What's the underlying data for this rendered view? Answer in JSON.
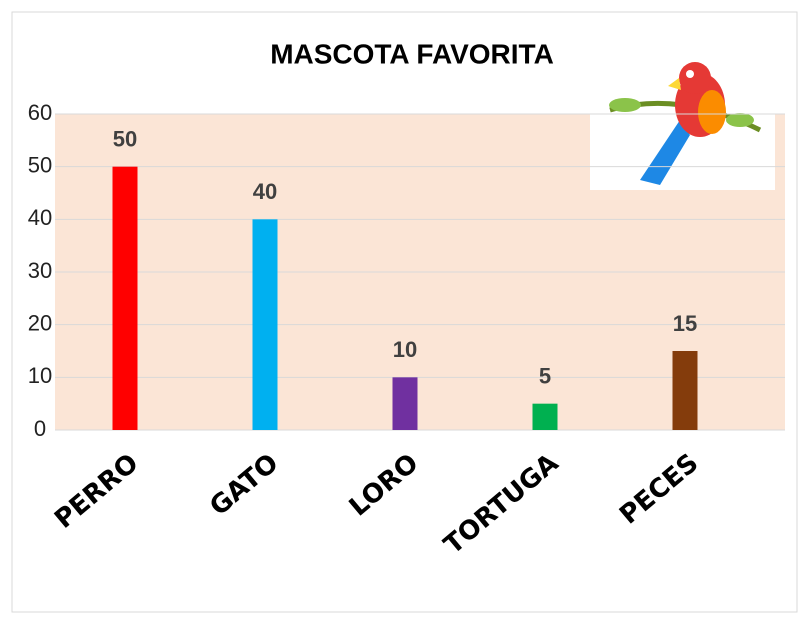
{
  "chart_data": {
    "type": "bar",
    "title": "MASCOTA FAVORITA",
    "categories": [
      "PERRO",
      "GATO",
      "LORO",
      "TORTUGA",
      "PECES"
    ],
    "values": [
      50,
      40,
      10,
      5,
      15
    ],
    "colors": [
      "#ff0000",
      "#00b0f0",
      "#7030a0",
      "#00b050",
      "#843c0c"
    ],
    "ylim": [
      0,
      60
    ],
    "yticks": [
      0,
      10,
      20,
      30,
      40,
      50,
      60
    ],
    "grid": true
  }
}
